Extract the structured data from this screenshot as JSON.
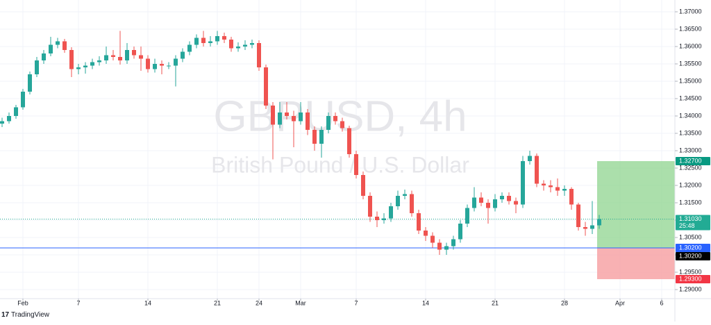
{
  "chart_data": {
    "type": "candlestick",
    "title": "GBPUSD, 4h",
    "subtitle": "British Pound / U.S. Dollar",
    "x": [
      -1.5,
      -1,
      -0.5,
      0,
      0.5,
      1,
      1.5,
      2,
      2.5,
      3,
      3.5,
      4,
      4.5,
      5,
      5.5,
      6,
      6.5,
      7,
      7.5,
      8,
      8.5,
      9,
      9.5,
      10,
      10.5,
      11,
      11.5,
      12,
      12.5,
      13,
      13.5,
      14,
      14.5,
      15,
      15.5,
      16,
      16.5,
      17,
      17.5,
      18,
      18.5,
      19,
      19.5,
      20,
      20.5,
      21,
      21.5,
      22,
      22.5,
      23,
      23.5,
      24,
      24.5,
      25,
      25.5,
      26,
      26.5,
      27,
      27.5,
      28,
      28.5,
      29,
      29.5,
      30,
      30.5,
      31,
      31.5,
      32,
      32.5,
      33,
      33.5,
      34,
      34.5,
      35,
      35.5,
      36,
      36.5,
      37,
      37.5,
      38,
      38.5,
      39,
      39.5,
      40,
      40.5,
      41,
      41.5
    ],
    "open": [
      1.3378,
      1.3385,
      1.34,
      1.3425,
      1.347,
      1.352,
      1.356,
      1.358,
      1.3605,
      1.3615,
      1.359,
      1.3535,
      1.354,
      1.3545,
      1.3555,
      1.356,
      1.3575,
      1.357,
      1.356,
      1.359,
      1.3575,
      1.3565,
      1.3535,
      1.355,
      1.3545,
      1.3545,
      1.3565,
      1.3585,
      1.3605,
      1.3625,
      1.361,
      1.3615,
      1.363,
      1.362,
      1.3595,
      1.36,
      1.3605,
      1.361,
      1.354,
      1.343,
      1.3375,
      1.341,
      1.34,
      1.3385,
      1.341,
      1.336,
      1.332,
      1.336,
      1.34,
      1.3385,
      1.3365,
      1.329,
      1.323,
      1.317,
      1.311,
      1.31,
      1.3105,
      1.314,
      1.317,
      1.3175,
      1.312,
      1.307,
      1.3055,
      1.3035,
      1.3015,
      1.3025,
      1.3045,
      1.309,
      1.3135,
      1.3165,
      1.315,
      1.3135,
      1.316,
      1.317,
      1.3155,
      1.3145,
      1.327,
      1.3285,
      1.3205,
      1.32,
      1.3195,
      1.3185,
      1.319,
      1.3145,
      1.308,
      1.3075,
      1.3085
    ],
    "high": [
      1.3395,
      1.341,
      1.3432,
      1.3478,
      1.3528,
      1.357,
      1.359,
      1.3628,
      1.3625,
      1.3622,
      1.3598,
      1.355,
      1.3555,
      1.3565,
      1.3572,
      1.36,
      1.359,
      1.3645,
      1.361,
      1.36,
      1.36,
      1.3575,
      1.3565,
      1.356,
      1.3555,
      1.3575,
      1.3595,
      1.3615,
      1.3635,
      1.3645,
      1.363,
      1.3645,
      1.364,
      1.3628,
      1.3612,
      1.3618,
      1.362,
      1.3618,
      1.3548,
      1.344,
      1.344,
      1.344,
      1.3415,
      1.344,
      1.342,
      1.337,
      1.337,
      1.341,
      1.341,
      1.3395,
      1.3372,
      1.33,
      1.324,
      1.318,
      1.3125,
      1.312,
      1.315,
      1.3185,
      1.3188,
      1.3185,
      1.313,
      1.308,
      1.3065,
      1.3045,
      1.3035,
      1.3055,
      1.31,
      1.3145,
      1.3195,
      1.318,
      1.316,
      1.3175,
      1.318,
      1.318,
      1.3165,
      1.3285,
      1.33,
      1.3292,
      1.3215,
      1.3215,
      1.322,
      1.32,
      1.3195,
      1.315,
      1.3095,
      1.3155,
      1.3115
    ],
    "low": [
      1.3368,
      1.3378,
      1.3392,
      1.3418,
      1.3462,
      1.3512,
      1.355,
      1.3572,
      1.3595,
      1.3582,
      1.3512,
      1.352,
      1.3522,
      1.3535,
      1.3545,
      1.355,
      1.356,
      1.3548,
      1.355,
      1.3565,
      1.353,
      1.3525,
      1.3525,
      1.352,
      1.3535,
      1.3485,
      1.3555,
      1.3575,
      1.3595,
      1.36,
      1.36,
      1.3605,
      1.361,
      1.3585,
      1.3585,
      1.359,
      1.3595,
      1.353,
      1.342,
      1.3275,
      1.3365,
      1.339,
      1.331,
      1.3375,
      1.3345,
      1.33,
      1.328,
      1.335,
      1.3375,
      1.3355,
      1.328,
      1.322,
      1.316,
      1.3095,
      1.308,
      1.309,
      1.3095,
      1.313,
      1.316,
      1.311,
      1.306,
      1.304,
      1.302,
      1.3,
      1.3,
      1.3015,
      1.3035,
      1.308,
      1.3125,
      1.314,
      1.309,
      1.3125,
      1.315,
      1.3145,
      1.312,
      1.3135,
      1.326,
      1.3195,
      1.3185,
      1.318,
      1.317,
      1.317,
      1.313,
      1.307,
      1.3055,
      1.306,
      1.3075
    ],
    "close": [
      1.3385,
      1.34,
      1.3425,
      1.347,
      1.352,
      1.356,
      1.358,
      1.3605,
      1.3615,
      1.359,
      1.3535,
      1.354,
      1.3545,
      1.3555,
      1.356,
      1.3575,
      1.357,
      1.356,
      1.359,
      1.3575,
      1.3565,
      1.3535,
      1.355,
      1.3545,
      1.3545,
      1.3565,
      1.3585,
      1.3605,
      1.3625,
      1.361,
      1.3615,
      1.363,
      1.362,
      1.3595,
      1.36,
      1.3605,
      1.361,
      1.354,
      1.343,
      1.3375,
      1.341,
      1.34,
      1.3385,
      1.341,
      1.336,
      1.332,
      1.336,
      1.34,
      1.3385,
      1.3365,
      1.329,
      1.323,
      1.317,
      1.311,
      1.31,
      1.3105,
      1.314,
      1.317,
      1.3175,
      1.312,
      1.307,
      1.3055,
      1.3035,
      1.3015,
      1.3025,
      1.3045,
      1.309,
      1.3135,
      1.3165,
      1.315,
      1.3135,
      1.316,
      1.317,
      1.3155,
      1.3145,
      1.327,
      1.3285,
      1.3205,
      1.32,
      1.3195,
      1.3185,
      1.319,
      1.3145,
      1.308,
      1.3075,
      1.3085,
      1.3103
    ],
    "up_color": "#26a69a",
    "down_color": "#ef5350",
    "xlim": [
      -1.65,
      46.95
    ],
    "xticks": [
      {
        "value": 0,
        "label": "Feb"
      },
      {
        "value": 4,
        "label": "7"
      },
      {
        "value": 9,
        "label": "14"
      },
      {
        "value": 14,
        "label": "21"
      },
      {
        "value": 17,
        "label": "24"
      },
      {
        "value": 20,
        "label": "Mar"
      },
      {
        "value": 24,
        "label": "7"
      },
      {
        "value": 29,
        "label": "14"
      },
      {
        "value": 34,
        "label": "21"
      },
      {
        "value": 39,
        "label": "28"
      },
      {
        "value": 43,
        "label": "Apr"
      },
      {
        "value": 46,
        "label": "6"
      }
    ],
    "ylim": [
      1.2874,
      1.3734
    ],
    "yticks": [
      {
        "value": 1.29,
        "label": "1.29000"
      },
      {
        "value": 1.295,
        "label": "1.29500"
      },
      {
        "value": 1.3,
        "label": "1.30000"
      },
      {
        "value": 1.305,
        "label": "1.30500"
      },
      {
        "value": 1.31,
        "label": "1.31000"
      },
      {
        "value": 1.315,
        "label": "1.31500"
      },
      {
        "value": 1.32,
        "label": "1.32000"
      },
      {
        "value": 1.325,
        "label": "1.32500"
      },
      {
        "value": 1.33,
        "label": "1.33000"
      },
      {
        "value": 1.335,
        "label": "1.33500"
      },
      {
        "value": 1.34,
        "label": "1.34000"
      },
      {
        "value": 1.345,
        "label": "1.34500"
      },
      {
        "value": 1.35,
        "label": "1.35000"
      },
      {
        "value": 1.355,
        "label": "1.35500"
      },
      {
        "value": 1.36,
        "label": "1.36000"
      },
      {
        "value": 1.365,
        "label": "1.36500"
      },
      {
        "value": 1.37,
        "label": "1.37000"
      }
    ],
    "grid": true,
    "last_price": {
      "value": 1.3103,
      "label": "1.31030",
      "color": "#22ab94"
    },
    "countdown": "25:48",
    "position": {
      "target": {
        "value": 1.327,
        "label": "1.32700",
        "color": "#089981"
      },
      "entry": {
        "value": 1.302,
        "label": "1.30200",
        "color": "#2962ff"
      },
      "stop": {
        "value": 1.293,
        "label": "1.29300",
        "color": "#f23645"
      },
      "profit_color": "#8fd48f",
      "loss_color": "#f7a3a6"
    }
  },
  "brand": "TradingView"
}
